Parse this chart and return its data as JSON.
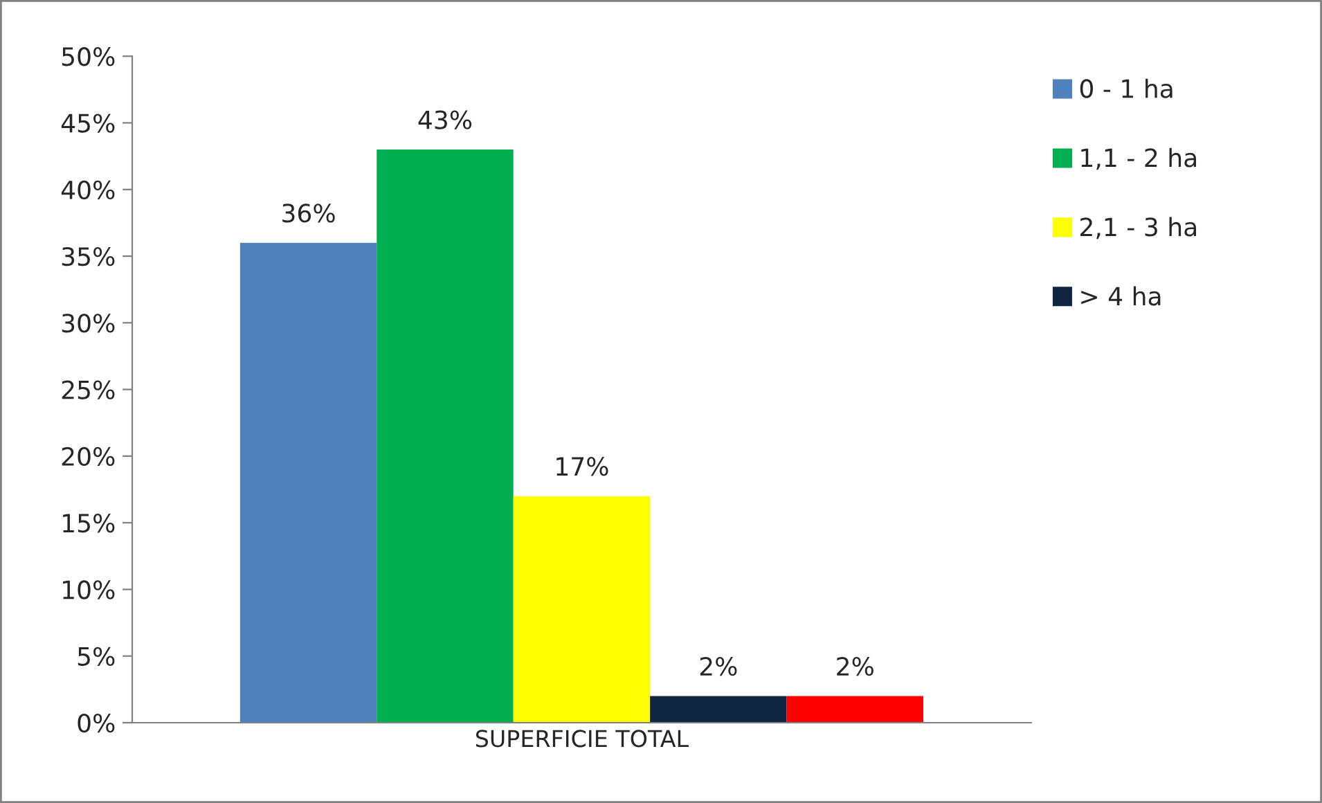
{
  "chart_data": {
    "type": "bar",
    "categories": [
      "SUPERFICIE TOTAL"
    ],
    "series": [
      {
        "name": "0 - 1 ha",
        "color": "#4f81bd",
        "values": [
          36
        ],
        "value_labels": [
          "36%"
        ]
      },
      {
        "name": "1,1 - 2 ha",
        "color": "#00b050",
        "values": [
          43
        ],
        "value_labels": [
          "43%"
        ]
      },
      {
        "name": "2,1 - 3 ha",
        "color": "#ffff00",
        "values": [
          17
        ],
        "value_labels": [
          "17%"
        ]
      },
      {
        "name": "> 4 ha",
        "color": "#10253f",
        "values": [
          2
        ],
        "value_labels": [
          "2%"
        ]
      },
      {
        "color": "#ff0000",
        "values": [
          2
        ],
        "value_labels": [
          "2%"
        ]
      }
    ],
    "ylim": [
      0,
      50
    ],
    "yticks": [
      {
        "value": 0,
        "label": "0%"
      },
      {
        "value": 5,
        "label": "5%"
      },
      {
        "value": 10,
        "label": "10%"
      },
      {
        "value": 15,
        "label": "15%"
      },
      {
        "value": 20,
        "label": "20%"
      },
      {
        "value": 25,
        "label": "25%"
      },
      {
        "value": 30,
        "label": "30%"
      },
      {
        "value": 35,
        "label": "35%"
      },
      {
        "value": 40,
        "label": "40%"
      },
      {
        "value": 45,
        "label": "45%"
      },
      {
        "value": 50,
        "label": "50%"
      }
    ],
    "grid": false,
    "legend": "right"
  }
}
